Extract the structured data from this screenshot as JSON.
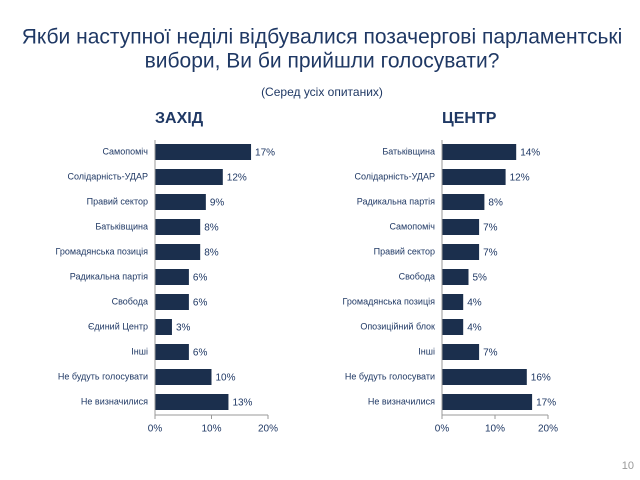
{
  "title": [
    "Якби наступної неділі відбувалися позачергові парламентські",
    "вибори, Ви би прийшли голосувати?"
  ],
  "subtitle": "(Серед усіх опитаних)",
  "page_number": "10",
  "chart_data": [
    {
      "type": "hbar",
      "title": "ЗАХІД",
      "color": "#1b2f4d",
      "categories": [
        "Самопоміч",
        "Солідарність-УДАР",
        "Правий сектор",
        "Батьківщина",
        "Громадянська позиція",
        "Радикальна партія",
        "Свобода",
        "Єдиний Центр",
        "Інші",
        "Не будуть голосувати",
        "Не визначилися"
      ],
      "values": [
        17,
        12,
        9,
        8,
        8,
        6,
        6,
        3,
        6,
        10,
        13
      ],
      "value_labels": [
        "17%",
        "12%",
        "9%",
        "8%",
        "8%",
        "6%",
        "6%",
        "3%",
        "6%",
        "10%",
        "13%"
      ],
      "xlim": [
        0,
        20
      ],
      "xticks": [
        {
          "value": 0,
          "label": "0%"
        },
        {
          "value": 10,
          "label": "10%"
        },
        {
          "value": 20,
          "label": "20%"
        }
      ]
    },
    {
      "type": "hbar",
      "title": "ЦЕНТР",
      "color": "#1b2f4d",
      "categories": [
        "Батьківщина",
        "Солідарність-УДАР",
        "Радикальна партія",
        "Самопоміч",
        "Правий сектор",
        "Свобода",
        "Громадянська позиція",
        "Опозиційний блок",
        "Інші",
        "Не будуть голосувати",
        "Не визначилися"
      ],
      "values": [
        14,
        12,
        8,
        7,
        7,
        5,
        4,
        4,
        7,
        16,
        17
      ],
      "value_labels": [
        "14%",
        "12%",
        "8%",
        "7%",
        "7%",
        "5%",
        "4%",
        "4%",
        "7%",
        "16%",
        "17%"
      ],
      "xlim": [
        0,
        20
      ],
      "xticks": [
        {
          "value": 0,
          "label": "0%"
        },
        {
          "value": 10,
          "label": "10%"
        },
        {
          "value": 20,
          "label": "20%"
        }
      ]
    }
  ]
}
